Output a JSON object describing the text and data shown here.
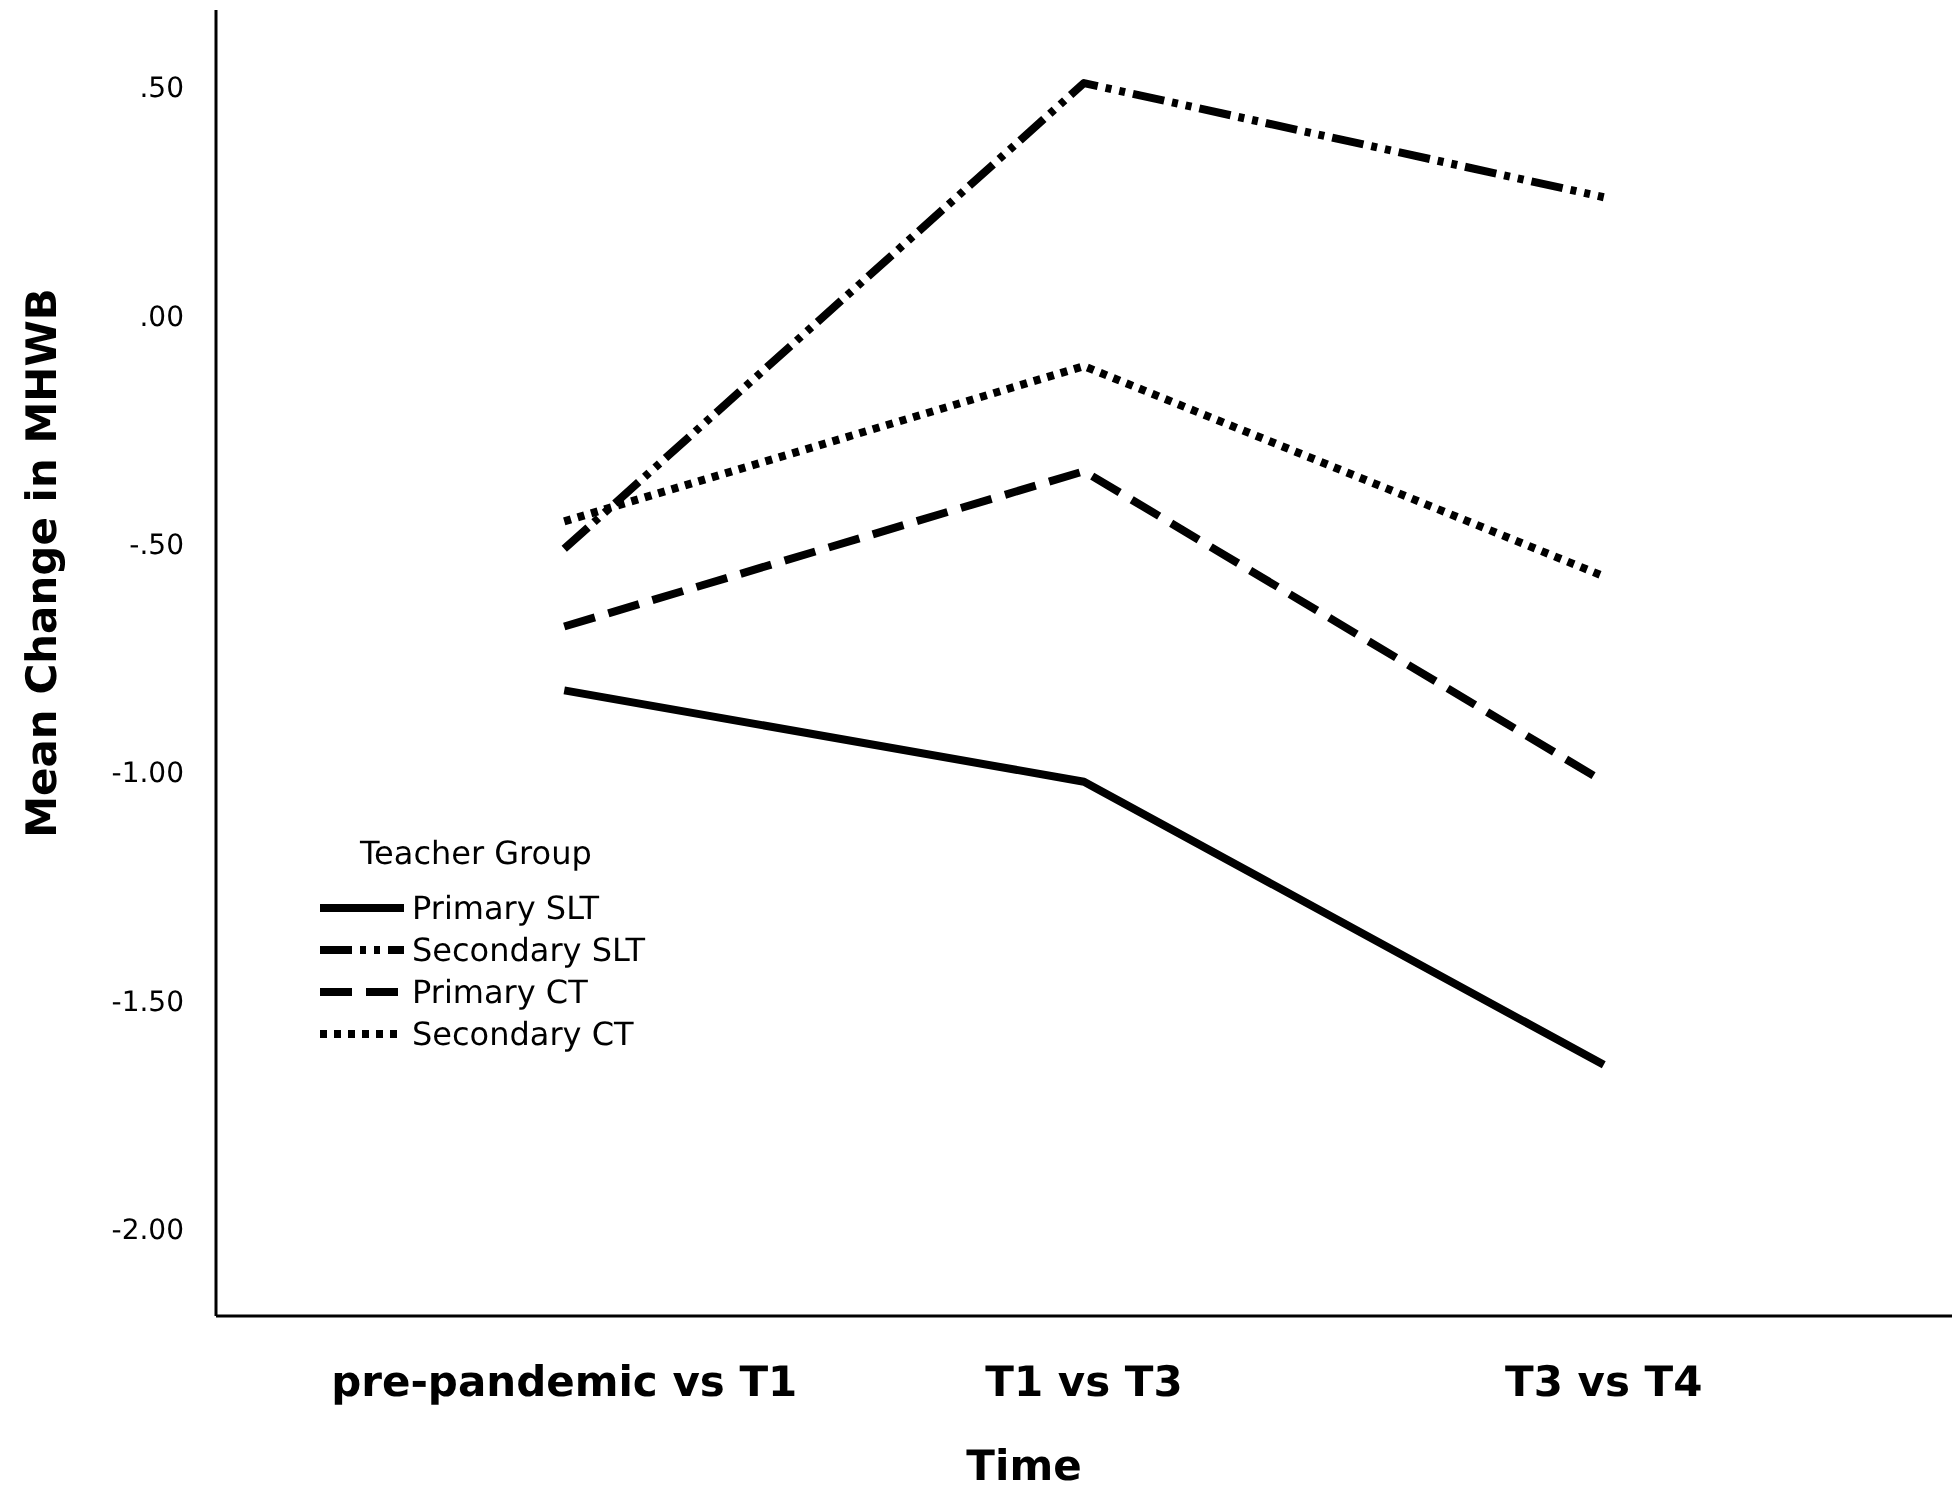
{
  "chart_data": {
    "type": "line",
    "xlabel": "Time",
    "ylabel": "Mean Change in MHWB",
    "legend_title": "Teacher Group",
    "legend": "bottom left",
    "grid": false,
    "marker": "none",
    "categories": [
      "pre-pandemic vs T1",
      "T1 vs T3",
      "T3 vs T4"
    ],
    "ylim": [
      -2.19,
      0.67
    ],
    "yticks": [
      {
        "value": 0.5,
        "label": ".50"
      },
      {
        "value": 0,
        "label": ".00"
      },
      {
        "value": -0.5,
        "label": "-.50"
      },
      {
        "value": -1,
        "label": "-1.00"
      },
      {
        "value": -1.5,
        "label": "-1.50"
      },
      {
        "value": -2,
        "label": "-2.00"
      }
    ],
    "series": [
      {
        "name": "Primary SLT",
        "color": "#000000",
        "line_style": "solid",
        "values": [
          -0.82,
          -1.02,
          -1.64
        ]
      },
      {
        "name": "Secondary SLT",
        "color": "#000000",
        "line_style": "dashdotdot",
        "values": [
          -0.51,
          0.51,
          0.26
        ]
      },
      {
        "name": "Primary CT",
        "color": "#000000",
        "line_style": "dashed",
        "values": [
          -0.68,
          -0.34,
          -1.02
        ]
      },
      {
        "name": "Secondary CT",
        "color": "#000000",
        "line_style": "dotted",
        "values": [
          -0.45,
          -0.11,
          -0.57
        ]
      }
    ]
  }
}
